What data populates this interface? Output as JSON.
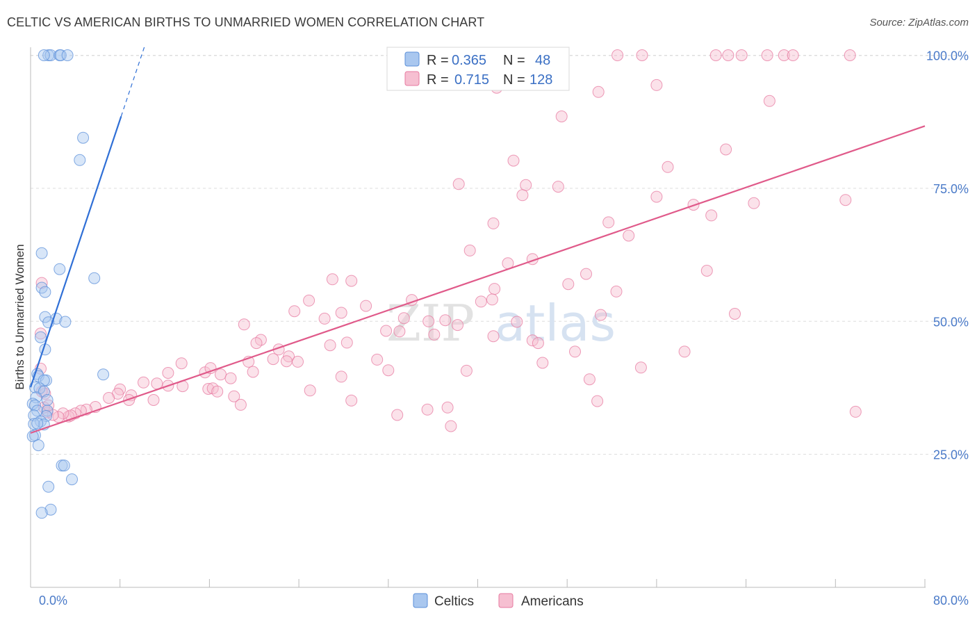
{
  "title": "CELTIC VS AMERICAN BIRTHS TO UNMARRIED WOMEN CORRELATION CHART",
  "source": "Source: ZipAtlas.com",
  "watermark": {
    "zip": "ZIP",
    "atlas": "atlas"
  },
  "colors": {
    "celtic": "#5b8fd9",
    "celtic_fill": "#a9c7ef",
    "american": "#e77aa0",
    "american_fill": "#f6bfd1",
    "axis_label": "#4a7ac8",
    "grid": "#dddddd"
  },
  "legend": {
    "rows": [
      {
        "r_label": "R =",
        "r_value": "0.365",
        "n_label": "N =",
        "n_value": "48"
      },
      {
        "r_label": "R =",
        "r_value": "0.715",
        "n_label": "N =",
        "n_value": "128"
      }
    ]
  },
  "bottom_legend": {
    "celtic": "Celtics",
    "american": "Americans"
  },
  "chart_data": {
    "type": "scatter",
    "title": "CELTIC VS AMERICAN BIRTHS TO UNMARRIED WOMEN CORRELATION CHART",
    "xlabel": "",
    "ylabel": "Births to Unmarried Women",
    "xlim": [
      0,
      80
    ],
    "ylim": [
      0,
      104
    ],
    "x_tick_labels": {
      "left": "0.0%",
      "right": "80.0%"
    },
    "y_ticks": [
      {
        "value": 25,
        "label": "25.0%"
      },
      {
        "value": 50,
        "label": "50.0%"
      },
      {
        "value": 75,
        "label": "75.0%"
      },
      {
        "value": 100,
        "label": "100.0%"
      }
    ],
    "series": [
      {
        "name": "Celtics",
        "r": 0.365,
        "n": 48,
        "trend": {
          "x0": 0.0,
          "y0": 37.6,
          "x1": 8.1,
          "y1": 88.5,
          "dash_to_x": 10.2
        },
        "points": [
          [
            1.6,
            100
          ],
          [
            1.8,
            100
          ],
          [
            2.6,
            100
          ],
          [
            2.7,
            100
          ],
          [
            3.3,
            100
          ],
          [
            1.2,
            100
          ],
          [
            4.7,
            84.5
          ],
          [
            4.4,
            80.3
          ],
          [
            1.0,
            62.8
          ],
          [
            2.6,
            59.8
          ],
          [
            5.7,
            58.1
          ],
          [
            1.0,
            56.3
          ],
          [
            1.3,
            55.5
          ],
          [
            2.3,
            50.5
          ],
          [
            1.3,
            50.8
          ],
          [
            3.1,
            49.9
          ],
          [
            1.6,
            49.8
          ],
          [
            0.9,
            47.0
          ],
          [
            1.3,
            44.7
          ],
          [
            6.5,
            40.0
          ],
          [
            0.6,
            40.1
          ],
          [
            0.7,
            39.7
          ],
          [
            1.4,
            38.9
          ],
          [
            1.2,
            38.9
          ],
          [
            0.4,
            37.6
          ],
          [
            0.8,
            37.4
          ],
          [
            1.2,
            36.8
          ],
          [
            0.5,
            35.7
          ],
          [
            1.5,
            35.2
          ],
          [
            0.2,
            34.5
          ],
          [
            0.4,
            34.2
          ],
          [
            0.6,
            33.2
          ],
          [
            1.5,
            33.2
          ],
          [
            1.4,
            32.2
          ],
          [
            0.3,
            32.3
          ],
          [
            0.9,
            31.2
          ],
          [
            1.2,
            30.6
          ],
          [
            0.3,
            30.7
          ],
          [
            0.6,
            30.8
          ],
          [
            0.4,
            28.6
          ],
          [
            0.2,
            28.4
          ],
          [
            0.7,
            26.7
          ],
          [
            2.8,
            22.9
          ],
          [
            3.0,
            22.9
          ],
          [
            1.6,
            18.9
          ],
          [
            3.7,
            20.3
          ],
          [
            1.8,
            14.6
          ],
          [
            1.0,
            14.0
          ]
        ]
      },
      {
        "name": "Americans",
        "r": 0.715,
        "n": 128,
        "trend": {
          "x0": 0.0,
          "y0": 29.0,
          "x1": 80.0,
          "y1": 86.7
        },
        "points": [
          [
            52.5,
            100
          ],
          [
            54.7,
            100
          ],
          [
            61.3,
            100
          ],
          [
            62.4,
            100
          ],
          [
            63.6,
            100
          ],
          [
            65.9,
            100
          ],
          [
            67.4,
            100
          ],
          [
            68.2,
            100
          ],
          [
            73.3,
            100
          ],
          [
            41.7,
            93.9
          ],
          [
            50.8,
            93.1
          ],
          [
            56.0,
            94.4
          ],
          [
            66.1,
            91.4
          ],
          [
            47.5,
            88.5
          ],
          [
            62.2,
            82.3
          ],
          [
            43.2,
            80.2
          ],
          [
            57.0,
            79.0
          ],
          [
            38.3,
            75.8
          ],
          [
            44.3,
            75.6
          ],
          [
            47.2,
            75.3
          ],
          [
            44.0,
            73.7
          ],
          [
            56.0,
            73.4
          ],
          [
            59.3,
            71.9
          ],
          [
            64.7,
            72.2
          ],
          [
            72.9,
            72.8
          ],
          [
            60.9,
            69.9
          ],
          [
            51.7,
            68.6
          ],
          [
            41.4,
            68.4
          ],
          [
            53.5,
            66.1
          ],
          [
            39.3,
            63.3
          ],
          [
            44.9,
            61.7
          ],
          [
            42.7,
            60.9
          ],
          [
            60.5,
            59.5
          ],
          [
            49.7,
            58.9
          ],
          [
            1.0,
            57.2
          ],
          [
            27.0,
            57.9
          ],
          [
            28.7,
            57.6
          ],
          [
            48.1,
            57.0
          ],
          [
            41.5,
            56.1
          ],
          [
            52.4,
            55.6
          ],
          [
            24.9,
            53.9
          ],
          [
            34.1,
            54.0
          ],
          [
            40.3,
            53.7
          ],
          [
            41.3,
            54.1
          ],
          [
            30.0,
            52.9
          ],
          [
            23.6,
            51.9
          ],
          [
            27.8,
            51.6
          ],
          [
            63.0,
            51.4
          ],
          [
            51.0,
            51.2
          ],
          [
            26.3,
            50.5
          ],
          [
            33.4,
            50.6
          ],
          [
            35.6,
            50.0
          ],
          [
            37.1,
            50.2
          ],
          [
            38.2,
            49.3
          ],
          [
            43.5,
            49.9
          ],
          [
            19.1,
            49.4
          ],
          [
            31.8,
            48.2
          ],
          [
            33.0,
            48.1
          ],
          [
            36.1,
            47.5
          ],
          [
            41.4,
            47.2
          ],
          [
            20.6,
            46.5
          ],
          [
            44.9,
            46.4
          ],
          [
            20.2,
            45.9
          ],
          [
            26.8,
            45.5
          ],
          [
            28.3,
            46.0
          ],
          [
            45.4,
            45.9
          ],
          [
            22.2,
            44.7
          ],
          [
            23.1,
            43.4
          ],
          [
            21.7,
            42.9
          ],
          [
            58.5,
            44.3
          ],
          [
            48.7,
            44.3
          ],
          [
            31.0,
            42.8
          ],
          [
            22.9,
            42.5
          ],
          [
            23.9,
            42.4
          ],
          [
            19.5,
            42.4
          ],
          [
            45.8,
            42.2
          ],
          [
            13.5,
            42.1
          ],
          [
            15.6,
            40.4
          ],
          [
            16.1,
            41.2
          ],
          [
            12.3,
            40.3
          ],
          [
            27.8,
            39.6
          ],
          [
            54.6,
            41.3
          ],
          [
            39.0,
            40.7
          ],
          [
            32.0,
            40.8
          ],
          [
            17.0,
            40.0
          ],
          [
            17.9,
            39.3
          ],
          [
            19.9,
            40.5
          ],
          [
            50.0,
            39.1
          ],
          [
            10.1,
            38.5
          ],
          [
            11.3,
            38.3
          ],
          [
            12.3,
            37.9
          ],
          [
            13.6,
            37.8
          ],
          [
            15.9,
            37.3
          ],
          [
            16.3,
            37.4
          ],
          [
            8.0,
            37.2
          ],
          [
            7.8,
            36.4
          ],
          [
            9.0,
            36.1
          ],
          [
            25.0,
            37.0
          ],
          [
            16.7,
            36.8
          ],
          [
            11.0,
            35.2
          ],
          [
            18.2,
            35.9
          ],
          [
            7.0,
            35.6
          ],
          [
            8.8,
            35.2
          ],
          [
            28.7,
            35.1
          ],
          [
            50.7,
            35.0
          ],
          [
            18.8,
            34.3
          ],
          [
            35.5,
            33.4
          ],
          [
            37.3,
            33.8
          ],
          [
            73.8,
            33.0
          ],
          [
            5.8,
            33.9
          ],
          [
            5.0,
            33.4
          ],
          [
            4.5,
            33.2
          ],
          [
            4.0,
            32.7
          ],
          [
            3.4,
            32.1
          ],
          [
            3.6,
            32.3
          ],
          [
            2.9,
            32.7
          ],
          [
            2.5,
            32.0
          ],
          [
            2.0,
            32.4
          ],
          [
            1.5,
            32.9
          ],
          [
            1.2,
            33.8
          ],
          [
            1.6,
            34.2
          ],
          [
            1.3,
            36.4
          ],
          [
            1.0,
            36.8
          ],
          [
            0.9,
            41.1
          ],
          [
            32.8,
            32.4
          ],
          [
            37.6,
            30.3
          ],
          [
            0.9,
            47.7
          ]
        ]
      }
    ]
  }
}
